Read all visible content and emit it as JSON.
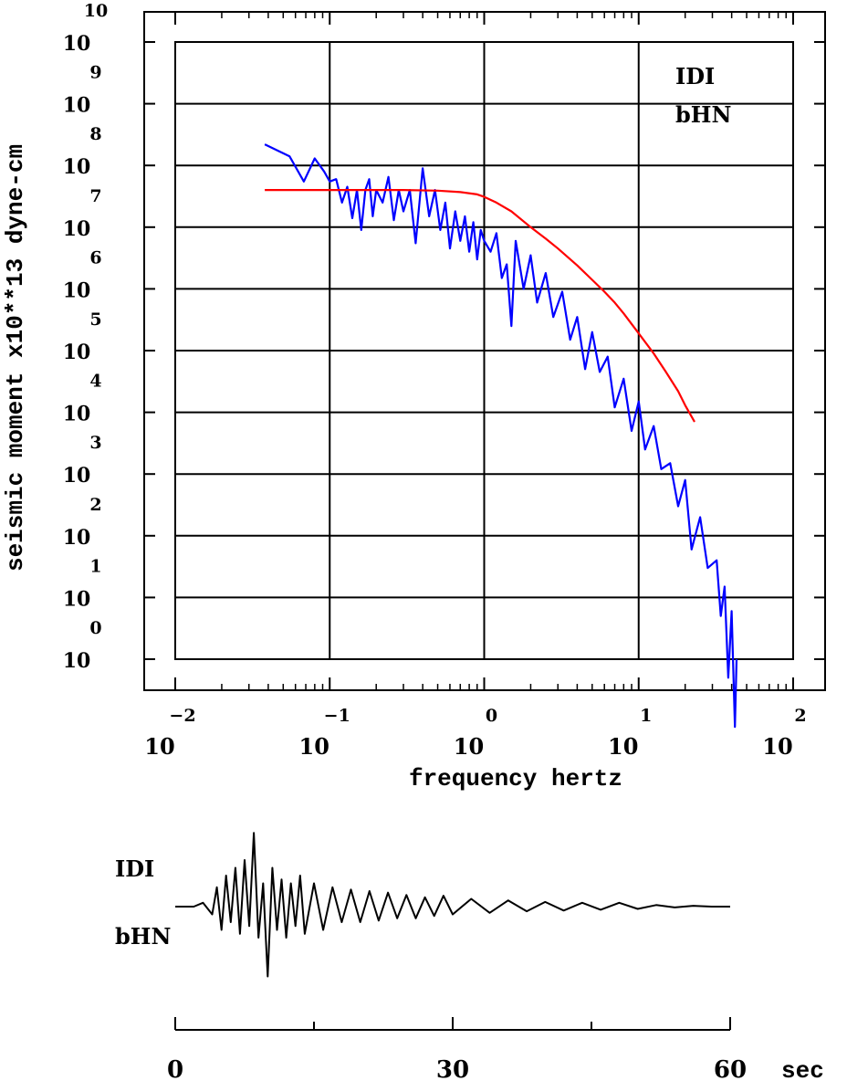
{
  "chart_data": [
    {
      "type": "line",
      "xscale": "log",
      "yscale": "log",
      "xlabel": "frequency  hertz",
      "ylabel": "seismic moment x10**13 dyne-cm",
      "xlim": [
        0.01,
        100
      ],
      "ylim": [
        1,
        10000000000
      ],
      "x_tick_exponents": [
        "-2",
        "-1",
        "0",
        "1",
        "2"
      ],
      "x_tick_base": "10",
      "y_tick_exponents": [
        "0",
        "1",
        "2",
        "3",
        "4",
        "5",
        "6",
        "7",
        "8",
        "9",
        "10"
      ],
      "y_tick_base": "10",
      "grid": true,
      "annotations": [
        "IDI",
        "bHN"
      ],
      "colors": {
        "spectrum": "#0000ff",
        "model": "#ff0000",
        "grid": "#000000"
      },
      "series": [
        {
          "kind": "observed_spectrum",
          "x": [
            0.038,
            0.055,
            0.068,
            0.08,
            0.092,
            0.1,
            0.11,
            0.12,
            0.13,
            0.14,
            0.15,
            0.16,
            0.17,
            0.18,
            0.19,
            0.2,
            0.22,
            0.24,
            0.26,
            0.28,
            0.3,
            0.33,
            0.36,
            0.4,
            0.44,
            0.48,
            0.52,
            0.56,
            0.6,
            0.65,
            0.7,
            0.75,
            0.8,
            0.85,
            0.9,
            0.95,
            1.0,
            1.1,
            1.2,
            1.3,
            1.4,
            1.5,
            1.6,
            1.8,
            2.0,
            2.2,
            2.5,
            2.8,
            3.2,
            3.6,
            4.0,
            4.5,
            5.0,
            5.6,
            6.3,
            7.0,
            8.0,
            9.0,
            10.0,
            11.0,
            12.5,
            14.0,
            16.0,
            18.0,
            20.0,
            22.0,
            25.0,
            28.0,
            32.0,
            34.0,
            36.0,
            38.0,
            40.0,
            42.0,
            43.0
          ],
          "y": [
            220000000,
            140000000,
            55000000,
            130000000,
            80000000,
            55000000,
            60000000,
            25000000,
            45000000,
            14000000,
            40000000,
            9000000,
            40000000,
            60000000,
            15000000,
            40000000,
            25000000,
            65000000,
            13000000,
            40000000,
            18000000,
            40000000,
            5500000,
            90000000,
            15000000,
            40000000,
            9000000,
            25000000,
            4500000,
            18000000,
            6000000,
            15000000,
            4000000,
            12000000,
            3000000,
            9000000,
            6000000,
            4000000,
            8000000,
            1500000,
            2500000,
            250000,
            6000000,
            1000000,
            3500000,
            600000,
            1800000,
            350000,
            900000,
            150000,
            350000,
            50000,
            200000,
            45000,
            80000,
            12000,
            35000,
            5000,
            15000,
            2500,
            6000,
            1200,
            1500,
            300,
            800,
            60,
            200,
            30,
            40,
            5,
            15,
            0.5,
            6,
            0.08,
            1
          ]
        },
        {
          "kind": "model_fit",
          "x": [
            0.038,
            0.05,
            0.1,
            0.2,
            0.3,
            0.5,
            0.7,
            0.9,
            1.0,
            1.2,
            1.5,
            2.0,
            2.5,
            3.0,
            4.0,
            5.0,
            6.0,
            7.0,
            8.0,
            10.0,
            12.5,
            15.0,
            18.0,
            20.0,
            23.0
          ],
          "y": [
            40000000,
            40000000,
            40000000,
            40000000,
            40000000,
            39000000,
            37000000,
            34000000,
            31000000,
            25000000,
            18000000,
            10000000,
            6500000,
            4500000,
            2400000,
            1400000,
            900000,
            600000,
            400000,
            190000,
            90000,
            45000,
            22000,
            13000,
            7000
          ]
        }
      ]
    },
    {
      "type": "line",
      "xlabel": "sec",
      "xlim": [
        0,
        60
      ],
      "x_ticks": [
        "0",
        "30",
        "60"
      ],
      "annotations": [
        "IDI",
        "bHN"
      ],
      "colors": {
        "trace": "#000000"
      },
      "series": [
        {
          "kind": "waveform",
          "x": [
            0,
            1,
            2,
            3,
            4,
            4.5,
            5,
            5.5,
            6,
            6.5,
            7,
            7.5,
            8,
            8.5,
            9,
            9.5,
            10,
            10.5,
            11,
            11.5,
            12,
            12.5,
            13,
            13.5,
            14,
            15,
            16,
            17,
            18,
            19,
            20,
            21,
            22,
            23,
            24,
            25,
            26,
            27,
            28,
            29,
            30,
            32,
            34,
            36,
            38,
            40,
            42,
            44,
            46,
            48,
            50,
            52,
            54,
            56,
            58,
            60
          ],
          "y": [
            0,
            0,
            0,
            0.05,
            -0.1,
            0.25,
            -0.3,
            0.4,
            -0.2,
            0.5,
            -0.35,
            0.6,
            -0.25,
            0.95,
            -0.4,
            0.3,
            -0.9,
            0.5,
            -0.3,
            0.35,
            -0.4,
            0.3,
            -0.25,
            0.4,
            -0.35,
            0.3,
            -0.3,
            0.25,
            -0.2,
            0.22,
            -0.2,
            0.2,
            -0.18,
            0.18,
            -0.15,
            0.15,
            -0.15,
            0.12,
            -0.12,
            0.14,
            -0.1,
            0.1,
            -0.08,
            0.08,
            -0.06,
            0.06,
            -0.05,
            0.05,
            -0.04,
            0.05,
            -0.03,
            0.02,
            -0.01,
            0.01,
            0,
            0
          ]
        }
      ]
    }
  ],
  "waveform_label_station": "IDI",
  "waveform_label_component": "bHN",
  "waveform_unit": "sec"
}
